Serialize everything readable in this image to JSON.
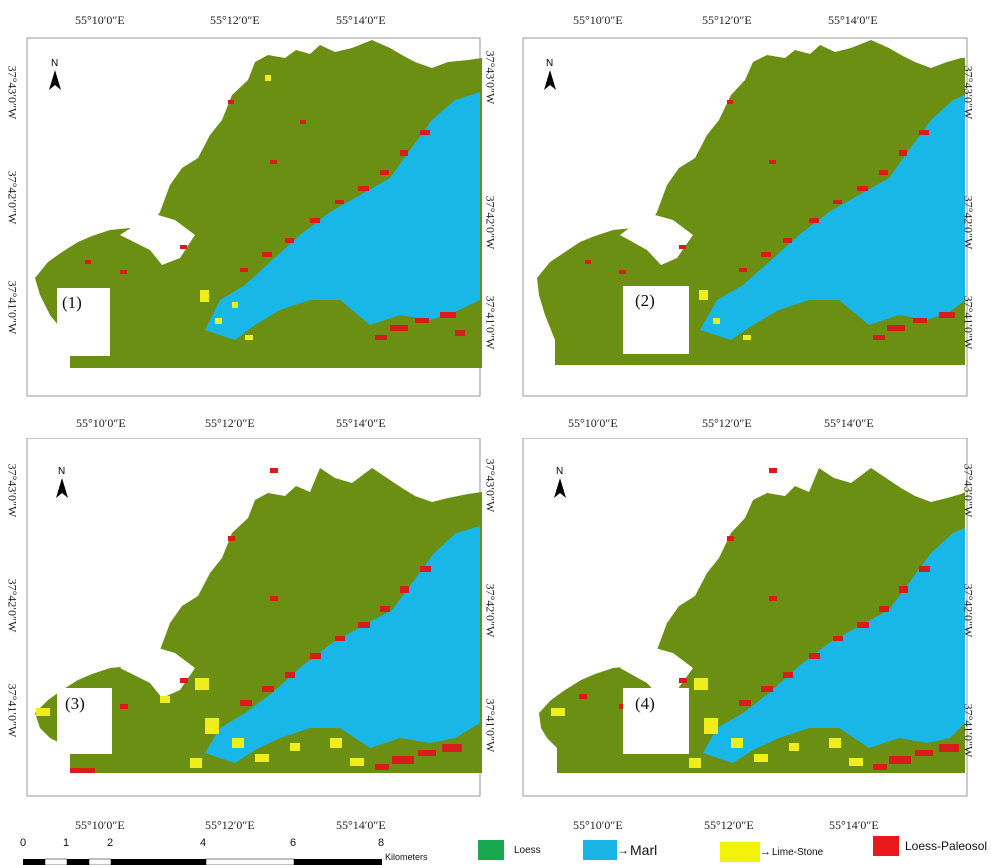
{
  "panels": [
    {
      "label": "(1)",
      "top_lon": [
        "55°10′0″E",
        "55°12′0″E",
        "55°14′0″E"
      ],
      "bottom_lon": [
        "55°10′0″E",
        "55°12′0″E",
        "55°14′0″E"
      ],
      "left_lat": [
        "37°43′0″W",
        "37°42′0″W",
        "37°41′0″W"
      ],
      "right_lat": [
        "37°43′0″W",
        "37°42′0″W",
        "37°41′0″W"
      ]
    },
    {
      "label": "(2)",
      "top_lon": [
        "55°10′0″E",
        "55°12′0″E",
        "55°14′0″E"
      ],
      "bottom_lon": [
        "55°10′0″E",
        "55°12′0″E",
        "55°14′0″E"
      ],
      "right_lat": [
        "37°43′0″W",
        "37°42′0″W",
        "37°41′0″W"
      ]
    },
    {
      "label": "(3)",
      "bottom_lon": [
        "55°10′0″E",
        "55°12′0″E",
        "55°14′0″E"
      ],
      "left_lat": [
        "37°43′0″W",
        "37°42′0″W",
        "37°41′0″W"
      ],
      "right_lat": [
        "37°43′0″W",
        "37°42′0″W",
        "37°41′0″W"
      ]
    },
    {
      "label": "(4)",
      "bottom_lon": [
        "55°10′0″E",
        "55°12′0″E",
        "55°14′0″E"
      ],
      "right_lat": [
        "37°43′0″W",
        "37°42′0″W",
        "37°41′0″W"
      ]
    }
  ],
  "north_label": "N",
  "scale": {
    "ticks": [
      "0",
      "1",
      "2",
      "4",
      "6",
      "8"
    ],
    "unit": "Kilometers"
  },
  "legend": [
    {
      "label": "Loess",
      "color": "#1aa84f"
    },
    {
      "label": "Marl",
      "color": "#1ab4e6"
    },
    {
      "label": "Lime-Stone",
      "color": "#f2f20a"
    },
    {
      "label": "Loess-Paleosol",
      "color": "#e8191c"
    }
  ],
  "colors": {
    "loess_map": "#6a8f12",
    "marl": "#19b7e8",
    "limestone": "#f0ee1a",
    "paleosol": "#d81c1c"
  }
}
